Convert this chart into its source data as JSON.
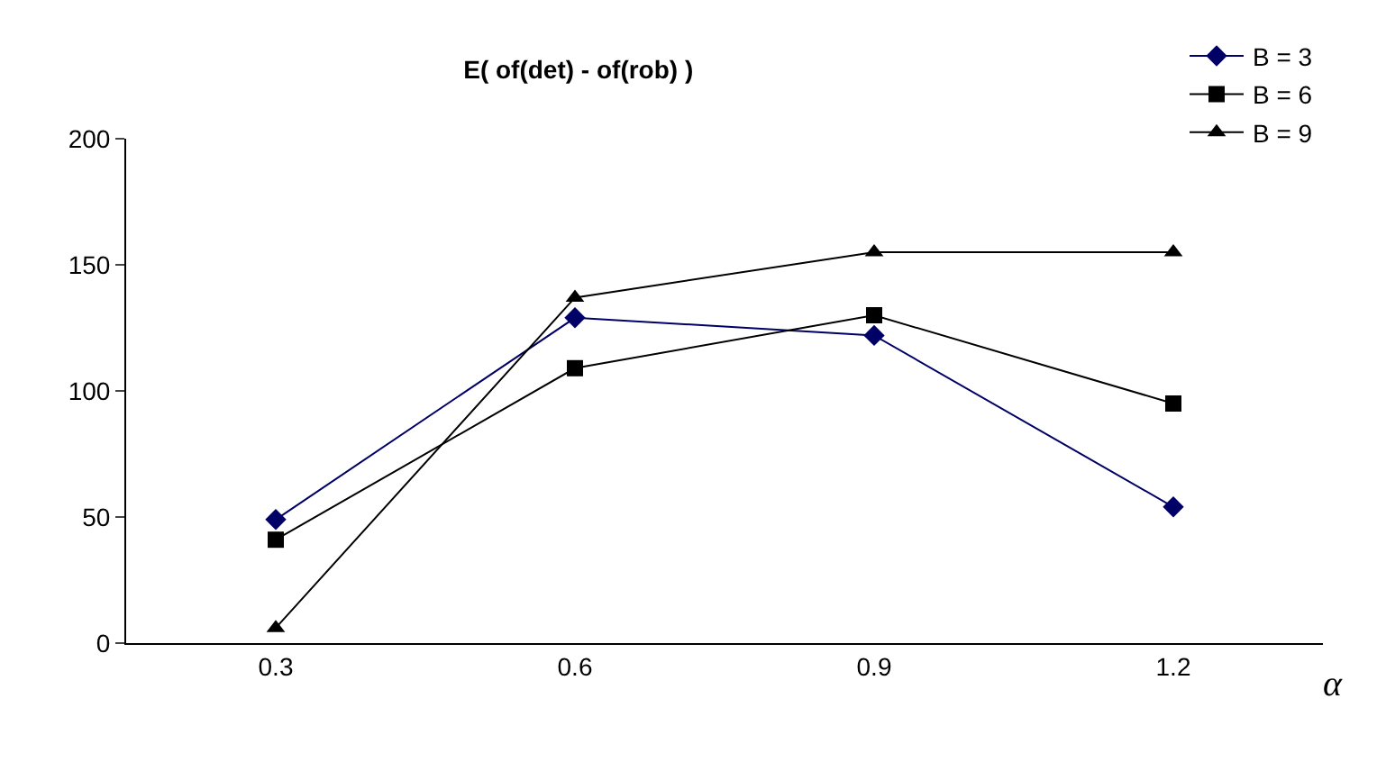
{
  "chart_data": {
    "type": "line",
    "title": "E( of(det) - of(rob) )",
    "xlabel": "α",
    "categories": [
      "0.3",
      "0.6",
      "0.9",
      "1.2"
    ],
    "series": [
      {
        "name": "B = 3",
        "color": "#000066",
        "marker": "diamond",
        "values": [
          49,
          129,
          122,
          54
        ]
      },
      {
        "name": "B = 6",
        "color": "#000000",
        "marker": "square",
        "values": [
          41,
          109,
          130,
          95
        ]
      },
      {
        "name": "B = 9",
        "color": "#000000",
        "marker": "triangle",
        "values": [
          6,
          137,
          155,
          155
        ]
      }
    ],
    "ylim": [
      0,
      200
    ],
    "yticks": [
      0,
      50,
      100,
      150,
      200
    ],
    "legend": "top right",
    "line_style": "solid"
  }
}
